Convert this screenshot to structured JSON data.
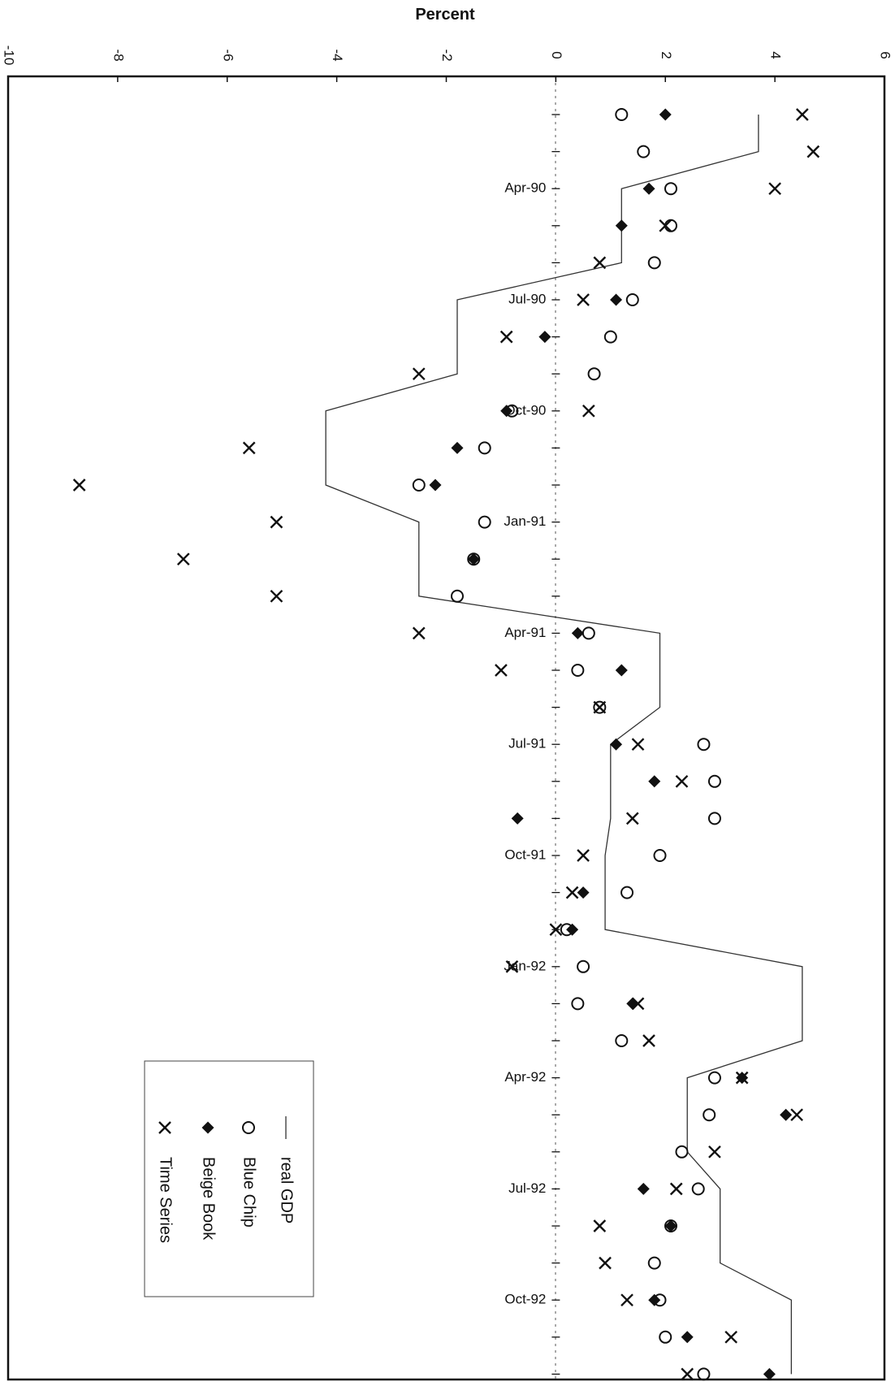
{
  "chart_data": {
    "type": "scatter",
    "orientation": "rotated-90-clockwise",
    "title": "Percent",
    "value_axis": {
      "range": [
        -10,
        6
      ],
      "ticks": [
        -10,
        -8,
        -6,
        -4,
        -2,
        0,
        2,
        4,
        6
      ],
      "tick_labels": [
        "-10",
        "-8",
        "-6",
        "-4",
        "-2",
        "0",
        "2",
        "4",
        "6"
      ]
    },
    "category_axis": {
      "labeled_months": [
        {
          "label": "Apr-90",
          "index": 2
        },
        {
          "label": "Jul-90",
          "index": 5
        },
        {
          "label": "Oct-90",
          "index": 8
        },
        {
          "label": "Jan-91",
          "index": 11
        },
        {
          "label": "Apr-91",
          "index": 14
        },
        {
          "label": "Jul-91",
          "index": 17
        },
        {
          "label": "Oct-91",
          "index": 20
        },
        {
          "label": "Jan-92",
          "index": 23
        },
        {
          "label": "Apr-92",
          "index": 26
        },
        {
          "label": "Jul-92",
          "index": 29
        },
        {
          "label": "Oct-92",
          "index": 32
        }
      ],
      "count": 35
    },
    "legend_position": "lower-left",
    "series": [
      {
        "name": "real GDP",
        "marker": "line",
        "points": [
          [
            0,
            3.7
          ],
          [
            1,
            3.7
          ],
          [
            2,
            1.2
          ],
          [
            3,
            1.2
          ],
          [
            4,
            1.2
          ],
          [
            5,
            -1.8
          ],
          [
            6,
            -1.8
          ],
          [
            7,
            -1.8
          ],
          [
            8,
            -4.2
          ],
          [
            9,
            -4.2
          ],
          [
            10,
            -4.2
          ],
          [
            11,
            -2.5
          ],
          [
            12,
            -2.5
          ],
          [
            13,
            -2.5
          ],
          [
            14,
            1.9
          ],
          [
            15,
            1.9
          ],
          [
            16,
            1.9
          ],
          [
            17,
            1.0
          ],
          [
            18,
            1.0
          ],
          [
            19,
            1.0
          ],
          [
            20,
            0.9
          ],
          [
            21,
            0.9
          ],
          [
            22,
            0.9
          ],
          [
            23,
            4.5
          ],
          [
            24,
            4.5
          ],
          [
            25,
            4.5
          ],
          [
            26,
            2.4
          ],
          [
            27,
            2.4
          ],
          [
            28,
            2.4
          ],
          [
            29,
            3.0
          ],
          [
            30,
            3.0
          ],
          [
            31,
            3.0
          ],
          [
            32,
            4.3
          ],
          [
            33,
            4.3
          ],
          [
            34,
            4.3
          ]
        ]
      },
      {
        "name": "Blue Chip",
        "marker": "circle",
        "points": [
          [
            0,
            1.2
          ],
          [
            1,
            1.6
          ],
          [
            2,
            2.1
          ],
          [
            3,
            2.1
          ],
          [
            4,
            1.8
          ],
          [
            5,
            1.4
          ],
          [
            6,
            1.0
          ],
          [
            7,
            0.7
          ],
          [
            8,
            -0.8
          ],
          [
            9,
            -1.3
          ],
          [
            10,
            -2.5
          ],
          [
            11,
            -1.3
          ],
          [
            12,
            -1.5
          ],
          [
            13,
            -1.8
          ],
          [
            14,
            0.6
          ],
          [
            15,
            0.4
          ],
          [
            16,
            0.8
          ],
          [
            17,
            2.7
          ],
          [
            18,
            2.9
          ],
          [
            19,
            2.9
          ],
          [
            20,
            1.9
          ],
          [
            21,
            1.3
          ],
          [
            22,
            0.2
          ],
          [
            23,
            0.5
          ],
          [
            24,
            0.4
          ],
          [
            25,
            1.2
          ],
          [
            26,
            2.9
          ],
          [
            27,
            2.8
          ],
          [
            28,
            2.3
          ],
          [
            29,
            2.6
          ],
          [
            30,
            2.1
          ],
          [
            31,
            1.8
          ],
          [
            32,
            1.9
          ],
          [
            33,
            2.0
          ],
          [
            34,
            2.7
          ]
        ]
      },
      {
        "name": "Beige Book",
        "marker": "diamond",
        "points": [
          [
            0,
            2.0
          ],
          [
            2,
            1.7
          ],
          [
            3,
            1.2
          ],
          [
            5,
            1.1
          ],
          [
            6,
            -0.2
          ],
          [
            8,
            -0.9
          ],
          [
            9,
            -1.8
          ],
          [
            10,
            -2.2
          ],
          [
            12,
            -1.5
          ],
          [
            14,
            0.4
          ],
          [
            15,
            1.2
          ],
          [
            17,
            1.1
          ],
          [
            18,
            1.8
          ],
          [
            19,
            -0.7
          ],
          [
            21,
            0.5
          ],
          [
            22,
            0.3
          ],
          [
            24,
            1.4
          ],
          [
            26,
            3.4
          ],
          [
            27,
            4.2
          ],
          [
            29,
            1.6
          ],
          [
            30,
            2.1
          ],
          [
            32,
            1.8
          ],
          [
            33,
            2.4
          ],
          [
            34,
            3.9
          ]
        ]
      },
      {
        "name": "Time Series",
        "marker": "x",
        "points": [
          [
            0,
            4.5
          ],
          [
            1,
            4.7
          ],
          [
            2,
            4.0
          ],
          [
            3,
            2.0
          ],
          [
            4,
            0.8
          ],
          [
            5,
            0.5
          ],
          [
            6,
            -0.9
          ],
          [
            7,
            -2.5
          ],
          [
            8,
            0.6
          ],
          [
            9,
            -5.6
          ],
          [
            10,
            -8.7
          ],
          [
            11,
            -5.1
          ],
          [
            12,
            -6.8
          ],
          [
            13,
            -5.1
          ],
          [
            14,
            -2.5
          ],
          [
            15,
            -1.0
          ],
          [
            16,
            0.8
          ],
          [
            17,
            1.5
          ],
          [
            18,
            2.3
          ],
          [
            19,
            1.4
          ],
          [
            20,
            0.5
          ],
          [
            21,
            0.3
          ],
          [
            22,
            0.0
          ],
          [
            23,
            -0.8
          ],
          [
            24,
            1.5
          ],
          [
            25,
            1.7
          ],
          [
            26,
            3.4
          ],
          [
            27,
            4.4
          ],
          [
            28,
            2.9
          ],
          [
            29,
            2.2
          ],
          [
            30,
            0.8
          ],
          [
            31,
            0.9
          ],
          [
            32,
            1.3
          ],
          [
            33,
            3.2
          ],
          [
            34,
            2.4
          ]
        ]
      }
    ],
    "legend": [
      {
        "label": "real GDP",
        "marker": "line"
      },
      {
        "label": "Blue Chip",
        "marker": "circle"
      },
      {
        "label": "Beige Book",
        "marker": "diamond"
      },
      {
        "label": "Time Series",
        "marker": "x"
      }
    ],
    "colors": {
      "ink": "#111111",
      "background": "#ffffff"
    }
  }
}
